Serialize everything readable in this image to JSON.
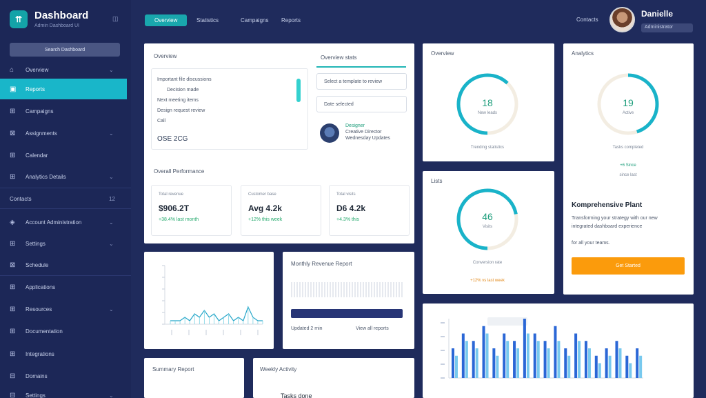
{
  "sidebar": {
    "brand": "Dashboard",
    "brand_sub": "Admin Dashboard UI",
    "collapse": "◫",
    "search": "Search Dashboard",
    "items": [
      {
        "icon": "⌂",
        "label": "Overview",
        "chev": "⌄"
      },
      {
        "icon": "▣",
        "label": "Reports",
        "chev": ""
      },
      {
        "icon": "⊞",
        "label": "Campaigns",
        "chev": ""
      },
      {
        "icon": "⊠",
        "label": "Assignments",
        "chev": "⌄"
      },
      {
        "icon": "⊞",
        "label": "Calendar",
        "chev": ""
      },
      {
        "icon": "⊞",
        "label": "Analytics Details",
        "chev": "⌄"
      }
    ],
    "section": "Contacts",
    "section_badge": "12",
    "items2": [
      {
        "icon": "◈",
        "label": "Account Administration",
        "chev": "⌄"
      },
      {
        "icon": "⊞",
        "label": "Settings",
        "chev": "⌄"
      },
      {
        "icon": "⊠",
        "label": "Schedule",
        "chev": ""
      },
      {
        "icon": "⊞",
        "label": "Applications",
        "chev": ""
      },
      {
        "icon": "⊞",
        "label": "Resources",
        "chev": "⌄"
      },
      {
        "icon": "⊞",
        "label": "Documentation",
        "chev": ""
      },
      {
        "icon": "⊞",
        "label": "Integrations",
        "chev": ""
      },
      {
        "icon": "⊟",
        "label": "Domains",
        "chev": ""
      },
      {
        "icon": "⊟",
        "label": "Settings",
        "chev": "⌄"
      }
    ]
  },
  "topbar": {
    "tabs": [
      "Overview",
      "Statistics",
      "Campaigns",
      "Reports"
    ],
    "link": "Contacts",
    "user_name": "Danielle",
    "user_role": "Administrator"
  },
  "card_inbox": {
    "title": "Overview",
    "rows": [
      "Important file discussions",
      "Decision made",
      "Next meeting items",
      "Design request review",
      "Call"
    ],
    "footer": "OSE 2CG",
    "tab_label": "Overview stats",
    "field1": "Select a template to review",
    "field2": "Date selected",
    "person_name": "Designer",
    "person_title": "Creative Director",
    "person_meta": "Wednesday Updates"
  },
  "stats": {
    "title": "Overall Performance",
    "items": [
      {
        "label": "Total revenue",
        "value": "$906.2T",
        "delta": "+38.4% last month"
      },
      {
        "label": "Customer base",
        "value": "Avg 4.2k",
        "delta": "+12% this week"
      },
      {
        "label": "Total visits",
        "value": "D6 4.2k",
        "delta": "+4.3% this"
      }
    ]
  },
  "rings": [
    {
      "title": "Overview",
      "value": "18",
      "sub": "New leads",
      "footer": "Trending statistics",
      "pct": 0.62
    },
    {
      "title": "Analytics",
      "value": "19",
      "sub": "Active",
      "footer": "Tasks completed",
      "pct": 0.45
    },
    {
      "title": "Lists",
      "value": "46",
      "sub": "Visits",
      "footer": "Conversion rate",
      "pct": 0.72
    }
  ],
  "ring_extra": {
    "badge": "+6 Since",
    "badge_sub": "since last"
  },
  "promo": {
    "title": "Komprehensive Plant",
    "lines": [
      "Transforming your strategy with our new",
      "integrated dashboard experience",
      "for all your teams."
    ],
    "button": "Get Started"
  },
  "info_card": {
    "title": "Monthly Revenue Report",
    "footer_left": "Updated 2 min",
    "footer_right": "View all reports"
  },
  "orange_note": "+12% vs last week",
  "bottom": {
    "left_title": "Summary Report",
    "right_title": "Weekly Activity",
    "right_sub": "Tasks done"
  },
  "chart_data": [
    {
      "type": "line",
      "y": [
        1,
        1,
        1,
        2,
        1,
        3,
        2,
        4,
        2,
        3,
        1,
        2,
        3,
        1,
        2,
        1,
        5,
        2,
        1,
        1
      ],
      "title": "",
      "xlabel": "",
      "ylabel": ""
    },
    {
      "type": "bar",
      "series": [
        {
          "name": "",
          "values": [
            4,
            6,
            5,
            7,
            4,
            6,
            5,
            8,
            6,
            5,
            7,
            4,
            6,
            5,
            3,
            4,
            5,
            3,
            4
          ]
        },
        {
          "name": "",
          "values": [
            3,
            5,
            4,
            6,
            3,
            5,
            4,
            6,
            5,
            4,
            5,
            3,
            5,
            4,
            2,
            3,
            4,
            2,
            3
          ]
        }
      ],
      "title": "",
      "xlabel": "",
      "ylabel": ""
    }
  ]
}
